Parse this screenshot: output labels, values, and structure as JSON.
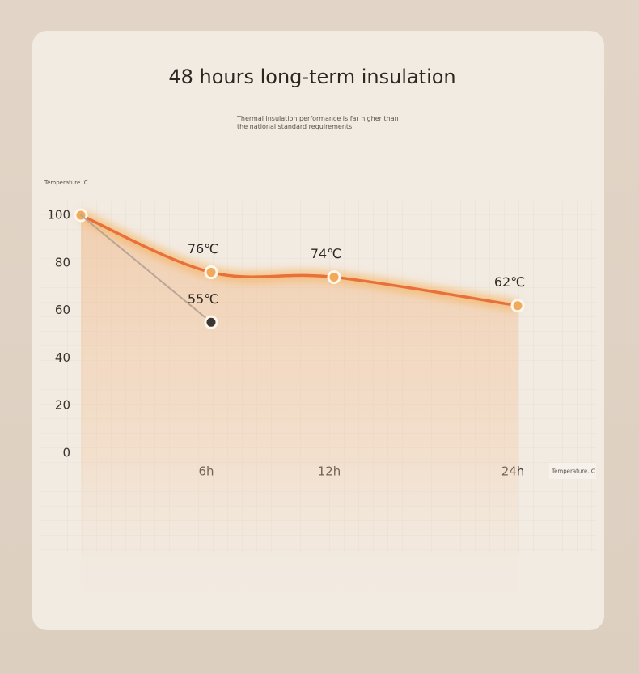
{
  "chart_data": {
    "type": "line",
    "title": "48 hours long-term insulation",
    "subtitle": "Thermal insulation performance is far higher than the national standard requirements",
    "y_label": "Temperature. C",
    "x_label": "Temperature. C",
    "categories": [
      null,
      "6h",
      "12h",
      "24h"
    ],
    "series": [
      {
        "color": "#e8703a",
        "values": [
          100,
          76,
          74,
          62
        ],
        "value_labels": [
          null,
          "76℃",
          "74℃",
          "62℃"
        ]
      },
      {
        "color": "#b9a594",
        "values": [
          100,
          55,
          null,
          null
        ],
        "value_labels": [
          null,
          "55℃",
          null,
          null
        ]
      }
    ],
    "ylim": [
      0,
      100
    ],
    "yticks": [
      0,
      20,
      40,
      60,
      80,
      100
    ]
  }
}
